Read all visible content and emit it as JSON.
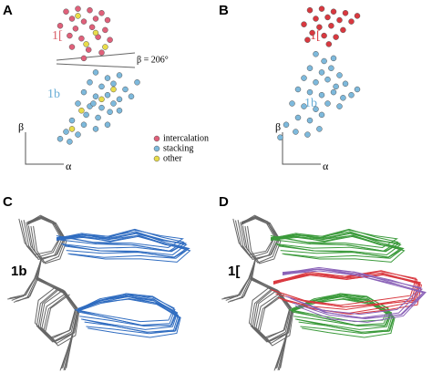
{
  "chart_data": [
    {
      "type": "scatter",
      "panel_label": "A",
      "x_label": "α",
      "y_label": "β",
      "annotations": [
        "1[",
        "1b",
        "β = 206°"
      ],
      "xlim": [
        0,
        100
      ],
      "ylim": [
        0,
        100
      ],
      "legend": "lower right",
      "series": [
        {
          "name": "intercalation",
          "color": "#e0607a",
          "x": [
            25,
            35,
            45,
            55,
            30,
            40,
            50,
            60,
            20,
            33,
            47,
            58,
            28,
            38,
            52,
            62,
            30,
            44,
            55,
            40
          ],
          "y": [
            95,
            97,
            96,
            94,
            90,
            88,
            90,
            89,
            85,
            83,
            84,
            82,
            78,
            76,
            77,
            75,
            70,
            68,
            66,
            62
          ]
        },
        {
          "name": "stacking",
          "color": "#7db9dc",
          "x": [
            50,
            60,
            70,
            45,
            55,
            65,
            75,
            40,
            50,
            60,
            70,
            80,
            35,
            45,
            55,
            65,
            42,
            52,
            62,
            30,
            40,
            50,
            25,
            35,
            20,
            28,
            60,
            70,
            85,
            48
          ],
          "y": [
            52,
            48,
            50,
            45,
            42,
            44,
            40,
            38,
            35,
            36,
            33,
            35,
            30,
            28,
            27,
            30,
            22,
            20,
            24,
            18,
            15,
            12,
            10,
            8,
            5,
            3,
            15,
            25,
            45,
            30
          ]
        },
        {
          "name": "other",
          "color": "#e8dc4a",
          "x": [
            35,
            50,
            42,
            58,
            38,
            55,
            30,
            65
          ],
          "y": [
            92,
            80,
            72,
            70,
            25,
            33,
            12,
            40
          ]
        }
      ]
    },
    {
      "type": "scatter",
      "panel_label": "B",
      "x_label": "α",
      "y_label": "β",
      "annotations": [
        "1[",
        "1b"
      ],
      "xlim": [
        0,
        100
      ],
      "ylim": [
        0,
        100
      ],
      "series": [
        {
          "color": "#d9383f",
          "x": [
            50,
            60,
            70,
            80,
            55,
            65,
            75,
            85,
            45,
            58,
            68,
            78,
            52,
            62,
            72,
            90,
            48,
            66
          ],
          "y": [
            96,
            97,
            95,
            94,
            90,
            91,
            89,
            88,
            86,
            84,
            85,
            82,
            80,
            78,
            77,
            92,
            75,
            72
          ]
        },
        {
          "color": "#7db9dc",
          "x": [
            55,
            62,
            70,
            50,
            60,
            68,
            75,
            45,
            55,
            65,
            72,
            80,
            40,
            50,
            60,
            70,
            78,
            35,
            45,
            55,
            65,
            85,
            40,
            50,
            60,
            30,
            38,
            48,
            25,
            58,
            75,
            90
          ],
          "y": [
            65,
            60,
            62,
            55,
            52,
            55,
            50,
            48,
            45,
            47,
            42,
            44,
            40,
            38,
            36,
            38,
            34,
            30,
            28,
            26,
            30,
            36,
            20,
            18,
            22,
            15,
            10,
            8,
            6,
            12,
            28,
            40
          ]
        }
      ]
    }
  ],
  "structures": [
    {
      "panel_label": "C",
      "annotation": "1b"
    },
    {
      "panel_label": "D",
      "annotation": "1["
    }
  ]
}
